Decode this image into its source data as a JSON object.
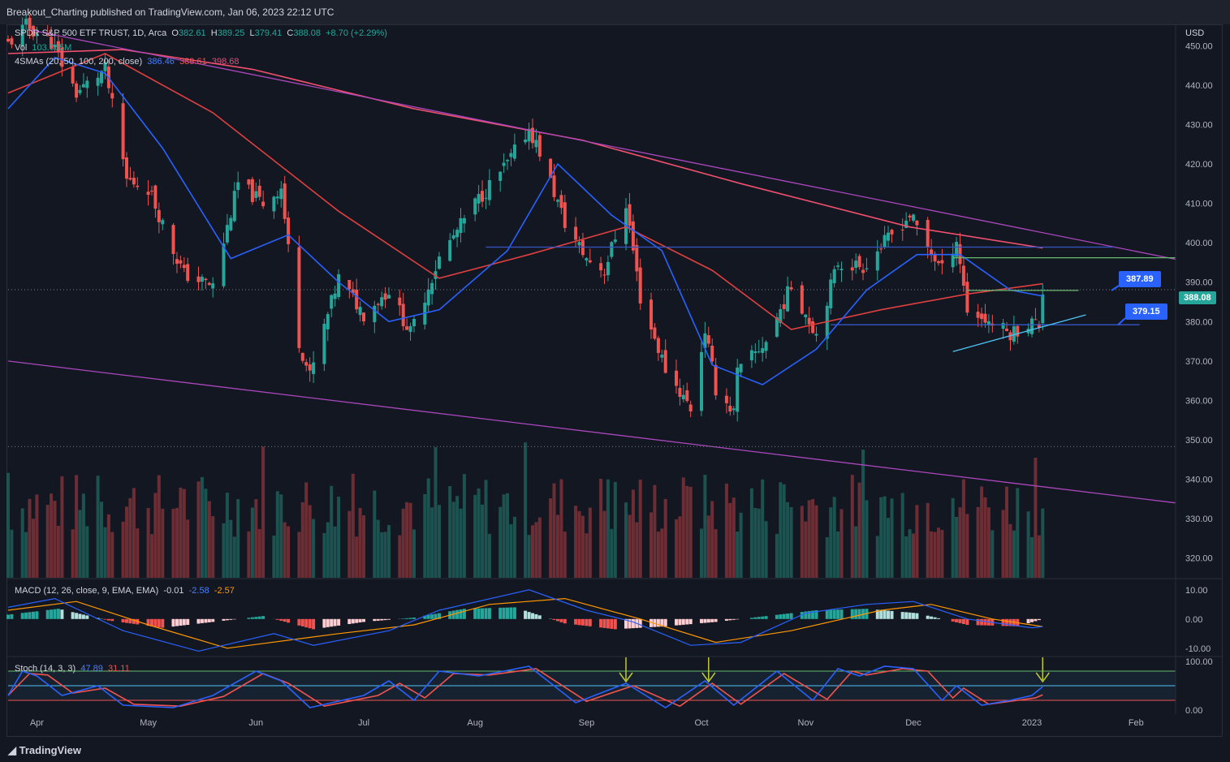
{
  "header": {
    "title": "Breakout_Charting published on TradingView.com, Jan 06, 2023 22:12 UTC"
  },
  "footer": {
    "brand": "TradingView"
  },
  "main_legend": {
    "symbol": "SPDR S&P 500 ETF TRUST, 1D, Arca",
    "o_label": "O",
    "o": "382.61",
    "h_label": "H",
    "h": "389.25",
    "l_label": "L",
    "l": "379.41",
    "c_label": "C",
    "c": "388.08",
    "change": "+8.70 (+2.29%)",
    "vol_label": "Vol",
    "vol": "103.065M",
    "sma_label": "4SMAs (20, 50, 100, 200, close)",
    "sma20": "386.46",
    "sma50": "389.61",
    "sma200": "398.68"
  },
  "macd_legend": {
    "label": "MACD (12, 26, close, 9, EMA, EMA)",
    "hist": "-0.01",
    "macd": "-2.58",
    "signal": "-2.57"
  },
  "stoch_legend": {
    "label": "Stoch (14, 3, 3)",
    "k": "47.89",
    "d": "31.11"
  },
  "price_labels": {
    "current": "388.08",
    "callout_upper": "387.89",
    "callout_lower": "379.15",
    "currency": "USD"
  },
  "colors": {
    "background": "#131722",
    "up": "#26a69a",
    "down": "#ef5350",
    "sma20": "#2962ff",
    "sma50": "#e0403f",
    "sma200": "#f0506e",
    "trendline": "#ab47bc",
    "support": "#4fc3f7",
    "resistance": "#66bb6a"
  },
  "chart_data": [
    {
      "type": "candlestick",
      "title": "SPDR S&P 500 ETF TRUST, 1D, Arca",
      "ylabel": "USD",
      "ylim": [
        315,
        455
      ],
      "y_ticks": [
        320,
        330,
        340,
        350,
        360,
        370,
        380,
        390,
        400,
        410,
        420,
        430,
        440,
        450
      ],
      "y_tick_labels": [
        "320.00",
        "330.00",
        "340.00",
        "350.00",
        "360.00",
        "370.00",
        "380.00",
        "390.00",
        "400.00",
        "410.00",
        "420.00",
        "430.00",
        "440.00",
        "450.00"
      ],
      "x_tick_labels": [
        "Apr",
        "May",
        "Jun",
        "Jul",
        "Aug",
        "Sep",
        "Oct",
        "Nov",
        "Dec",
        "2023",
        "Feb"
      ],
      "x_tick_dates": [
        "2022-04-01",
        "2022-05-02",
        "2022-06-01",
        "2022-07-01",
        "2022-08-01",
        "2022-09-01",
        "2022-10-03",
        "2022-11-01",
        "2022-12-01",
        "2023-01-03",
        "2023-02-01"
      ],
      "x_start": "2022-03-24",
      "x_end": "2023-02-12",
      "close_points": [
        [
          "2022-03-24",
          450.5
        ],
        [
          "2022-03-29",
          455
        ],
        [
          "2022-04-05",
          451
        ],
        [
          "2022-04-12",
          438
        ],
        [
          "2022-04-20",
          444
        ],
        [
          "2022-04-26",
          416
        ],
        [
          "2022-05-02",
          414
        ],
        [
          "2022-05-09",
          398
        ],
        [
          "2022-05-12",
          392
        ],
        [
          "2022-05-20",
          389
        ],
        [
          "2022-05-27",
          415
        ],
        [
          "2022-06-03",
          410
        ],
        [
          "2022-06-08",
          414
        ],
        [
          "2022-06-13",
          375
        ],
        [
          "2022-06-16",
          366
        ],
        [
          "2022-06-24",
          391
        ],
        [
          "2022-07-01",
          382
        ],
        [
          "2022-07-08",
          388
        ],
        [
          "2022-07-14",
          377
        ],
        [
          "2022-07-22",
          396
        ],
        [
          "2022-08-01",
          410
        ],
        [
          "2022-08-10",
          420
        ],
        [
          "2022-08-16",
          429
        ],
        [
          "2022-08-19",
          423
        ],
        [
          "2022-08-26",
          405
        ],
        [
          "2022-09-01",
          396
        ],
        [
          "2022-09-06",
          393
        ],
        [
          "2022-09-12",
          410
        ],
        [
          "2022-09-16",
          386
        ],
        [
          "2022-09-23",
          368
        ],
        [
          "2022-09-30",
          358
        ],
        [
          "2022-10-04",
          378
        ],
        [
          "2022-10-07",
          363
        ],
        [
          "2022-10-12",
          357
        ],
        [
          "2022-10-13",
          367
        ],
        [
          "2022-10-21",
          375
        ],
        [
          "2022-10-28",
          389
        ],
        [
          "2022-11-04",
          377
        ],
        [
          "2022-11-10",
          395
        ],
        [
          "2022-11-17",
          394
        ],
        [
          "2022-11-25",
          402
        ],
        [
          "2022-11-30",
          407
        ],
        [
          "2022-12-05",
          399
        ],
        [
          "2022-12-09",
          393
        ],
        [
          "2022-12-13",
          401
        ],
        [
          "2022-12-16",
          383
        ],
        [
          "2022-12-22",
          380
        ],
        [
          "2022-12-28",
          377
        ],
        [
          "2023-01-03",
          380
        ],
        [
          "2023-01-05",
          379
        ],
        [
          "2023-01-06",
          388.08
        ]
      ],
      "sma20_points": [
        [
          "2022-03-24",
          434
        ],
        [
          "2022-04-06",
          447
        ],
        [
          "2022-04-20",
          443
        ],
        [
          "2022-05-06",
          424
        ],
        [
          "2022-05-25",
          396
        ],
        [
          "2022-06-10",
          402
        ],
        [
          "2022-06-24",
          390
        ],
        [
          "2022-07-08",
          380
        ],
        [
          "2022-07-22",
          383
        ],
        [
          "2022-08-10",
          398
        ],
        [
          "2022-08-24",
          420
        ],
        [
          "2022-09-08",
          407
        ],
        [
          "2022-09-22",
          398
        ],
        [
          "2022-10-06",
          369
        ],
        [
          "2022-10-20",
          364
        ],
        [
          "2022-11-04",
          373
        ],
        [
          "2022-11-18",
          388
        ],
        [
          "2022-12-02",
          397
        ],
        [
          "2022-12-14",
          397
        ],
        [
          "2022-12-28",
          388
        ],
        [
          "2023-01-06",
          386.46
        ]
      ],
      "sma50_points": [
        [
          "2022-03-24",
          438
        ],
        [
          "2022-04-20",
          448
        ],
        [
          "2022-05-20",
          433
        ],
        [
          "2022-06-24",
          408
        ],
        [
          "2022-07-22",
          391
        ],
        [
          "2022-08-16",
          397
        ],
        [
          "2022-09-12",
          404
        ],
        [
          "2022-10-06",
          393
        ],
        [
          "2022-10-28",
          378
        ],
        [
          "2022-11-22",
          383
        ],
        [
          "2022-12-16",
          387
        ],
        [
          "2023-01-06",
          389.61
        ]
      ],
      "sma200_points": [
        [
          "2022-03-24",
          448
        ],
        [
          "2022-04-25",
          449
        ],
        [
          "2022-05-31",
          444
        ],
        [
          "2022-07-15",
          434
        ],
        [
          "2022-08-31",
          426
        ],
        [
          "2022-10-14",
          415
        ],
        [
          "2022-11-30",
          404
        ],
        [
          "2023-01-06",
          398.68
        ]
      ],
      "lines": [
        {
          "name": "upper-trendline",
          "from": [
            "2022-03-30",
            454
          ],
          "to": [
            "2023-02-12",
            395.8
          ],
          "color": "#ab47bc"
        },
        {
          "name": "lower-trendline",
          "from": [
            "2022-03-24",
            370
          ],
          "to": [
            "2023-02-12",
            334
          ],
          "color": "#ab47bc"
        },
        {
          "name": "resistance-line",
          "from": [
            "2022-12-12",
            396.2
          ],
          "to": [
            "2023-02-12",
            396.2
          ],
          "color": "#66bb6a"
        },
        {
          "name": "range-top",
          "from": [
            "2022-08-04",
            398.9
          ],
          "to": [
            "2023-01-26",
            398.9
          ],
          "color": "#3456c5"
        },
        {
          "name": "range-bottom",
          "from": [
            "2022-11-08",
            379.2
          ],
          "to": [
            "2023-02-02",
            379.2
          ],
          "color": "#3456c5"
        },
        {
          "name": "support-trendline",
          "from": [
            "2022-12-12",
            372.4
          ],
          "to": [
            "2023-01-18",
            381.7
          ],
          "color": "#4fc3f7"
        },
        {
          "name": "breakout-line",
          "from": [
            "2022-12-16",
            387.9
          ],
          "to": [
            "2023-01-16",
            387.9
          ],
          "color": "#66bb6a"
        }
      ],
      "dotted_levels": [
        388.08,
        348.3
      ]
    },
    {
      "type": "macd",
      "title": "MACD (12, 26, close, 9, EMA, EMA)",
      "ylim": [
        -12,
        13
      ],
      "y_ticks": [
        -10,
        0,
        10
      ],
      "y_tick_labels": [
        "-10.00",
        "0.00",
        "10.00"
      ],
      "macd_points": [
        [
          "2022-03-24",
          4
        ],
        [
          "2022-04-06",
          7
        ],
        [
          "2022-04-25",
          -4
        ],
        [
          "2022-05-16",
          -11
        ],
        [
          "2022-06-06",
          -5
        ],
        [
          "2022-06-17",
          -9
        ],
        [
          "2022-07-08",
          -4
        ],
        [
          "2022-07-22",
          3
        ],
        [
          "2022-08-16",
          10
        ],
        [
          "2022-09-01",
          3
        ],
        [
          "2022-09-14",
          -1
        ],
        [
          "2022-09-30",
          -9
        ],
        [
          "2022-10-14",
          -8
        ],
        [
          "2022-11-01",
          2
        ],
        [
          "2022-11-18",
          5
        ],
        [
          "2022-12-01",
          6
        ],
        [
          "2022-12-16",
          0
        ],
        [
          "2023-01-03",
          -3
        ],
        [
          "2023-01-06",
          -2.58
        ]
      ],
      "signal_points": [
        [
          "2022-03-24",
          3
        ],
        [
          "2022-04-12",
          6
        ],
        [
          "2022-05-02",
          -2
        ],
        [
          "2022-05-24",
          -10
        ],
        [
          "2022-06-24",
          -5
        ],
        [
          "2022-07-15",
          -2
        ],
        [
          "2022-08-05",
          5
        ],
        [
          "2022-08-26",
          7
        ],
        [
          "2022-09-16",
          0
        ],
        [
          "2022-10-07",
          -8
        ],
        [
          "2022-10-28",
          -4
        ],
        [
          "2022-11-22",
          3
        ],
        [
          "2022-12-06",
          5
        ],
        [
          "2022-12-23",
          0
        ],
        [
          "2023-01-06",
          -2.57
        ]
      ],
      "histogram_points": [
        [
          "2022-03-24",
          1.5
        ],
        [
          "2022-04-07",
          3.5
        ],
        [
          "2022-04-21",
          -0.5
        ],
        [
          "2022-05-06",
          -3
        ],
        [
          "2022-05-20",
          -1
        ],
        [
          "2022-06-03",
          1
        ],
        [
          "2022-06-17",
          -3.5
        ],
        [
          "2022-07-01",
          -1
        ],
        [
          "2022-07-15",
          0.5
        ],
        [
          "2022-07-29",
          3.5
        ],
        [
          "2022-08-12",
          4
        ],
        [
          "2022-08-26",
          -1.5
        ],
        [
          "2022-09-09",
          -3.5
        ],
        [
          "2022-09-23",
          -2.5
        ],
        [
          "2022-10-07",
          -1
        ],
        [
          "2022-10-21",
          1
        ],
        [
          "2022-11-04",
          3
        ],
        [
          "2022-11-18",
          3.5
        ],
        [
          "2022-12-02",
          2
        ],
        [
          "2022-12-16",
          -2
        ],
        [
          "2022-12-30",
          -2.5
        ],
        [
          "2023-01-06",
          -0.01
        ]
      ]
    },
    {
      "type": "stochastic",
      "title": "Stoch (14, 3, 3)",
      "ylim": [
        -5,
        105
      ],
      "y_ticks": [
        0,
        100
      ],
      "y_tick_labels": [
        "0.00",
        "100.00"
      ],
      "bands": [
        80,
        50,
        20
      ],
      "k_points": [
        [
          "2022-03-24",
          30
        ],
        [
          "2022-03-28",
          80
        ],
        [
          "2022-04-01",
          70
        ],
        [
          "2022-04-08",
          30
        ],
        [
          "2022-04-18",
          50
        ],
        [
          "2022-04-25",
          10
        ],
        [
          "2022-05-09",
          5
        ],
        [
          "2022-05-20",
          30
        ],
        [
          "2022-06-01",
          80
        ],
        [
          "2022-06-08",
          60
        ],
        [
          "2022-06-16",
          5
        ],
        [
          "2022-07-01",
          30
        ],
        [
          "2022-07-08",
          60
        ],
        [
          "2022-07-15",
          20
        ],
        [
          "2022-07-22",
          80
        ],
        [
          "2022-08-02",
          70
        ],
        [
          "2022-08-16",
          90
        ],
        [
          "2022-08-29",
          15
        ],
        [
          "2022-09-12",
          55
        ],
        [
          "2022-09-23",
          5
        ],
        [
          "2022-10-04",
          60
        ],
        [
          "2022-10-12",
          10
        ],
        [
          "2022-10-24",
          80
        ],
        [
          "2022-11-03",
          20
        ],
        [
          "2022-11-10",
          85
        ],
        [
          "2022-11-16",
          70
        ],
        [
          "2022-11-23",
          90
        ],
        [
          "2022-12-01",
          85
        ],
        [
          "2022-12-09",
          20
        ],
        [
          "2022-12-13",
          50
        ],
        [
          "2022-12-20",
          10
        ],
        [
          "2022-12-28",
          20
        ],
        [
          "2023-01-03",
          30
        ],
        [
          "2023-01-06",
          47.89
        ]
      ],
      "d_points": [
        [
          "2022-03-24",
          30
        ],
        [
          "2022-03-30",
          75
        ],
        [
          "2022-04-04",
          72
        ],
        [
          "2022-04-11",
          35
        ],
        [
          "2022-04-20",
          45
        ],
        [
          "2022-04-28",
          12
        ],
        [
          "2022-05-11",
          8
        ],
        [
          "2022-05-23",
          28
        ],
        [
          "2022-06-03",
          75
        ],
        [
          "2022-06-10",
          55
        ],
        [
          "2022-06-20",
          8
        ],
        [
          "2022-07-05",
          30
        ],
        [
          "2022-07-11",
          55
        ],
        [
          "2022-07-18",
          25
        ],
        [
          "2022-07-26",
          75
        ],
        [
          "2022-08-05",
          72
        ],
        [
          "2022-08-18",
          85
        ],
        [
          "2022-09-01",
          18
        ],
        [
          "2022-09-14",
          50
        ],
        [
          "2022-09-27",
          8
        ],
        [
          "2022-10-06",
          55
        ],
        [
          "2022-10-14",
          12
        ],
        [
          "2022-10-26",
          75
        ],
        [
          "2022-11-07",
          22
        ],
        [
          "2022-11-14",
          80
        ],
        [
          "2022-11-18",
          72
        ],
        [
          "2022-11-28",
          85
        ],
        [
          "2022-12-05",
          80
        ],
        [
          "2022-12-12",
          25
        ],
        [
          "2022-12-15",
          45
        ],
        [
          "2022-12-22",
          12
        ],
        [
          "2022-12-30",
          20
        ],
        [
          "2023-01-04",
          25
        ],
        [
          "2023-01-06",
          31.11
        ]
      ],
      "arrows": [
        "2022-09-12",
        "2022-10-05",
        "2023-01-06"
      ]
    }
  ]
}
